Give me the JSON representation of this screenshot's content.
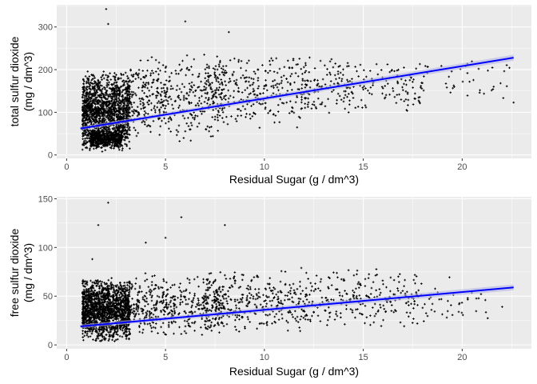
{
  "chart_data": [
    {
      "type": "scatter",
      "xlabel": "Residual Sugar (g / dm^3)",
      "ylabel": [
        "total sulfur dioxide",
        "(mg / dm^3)"
      ],
      "xlim": [
        -0.5,
        23.5
      ],
      "ylim": [
        -8,
        352
      ],
      "xticks": [
        0,
        5,
        10,
        15,
        20
      ],
      "yticks": [
        0,
        100,
        200,
        300
      ],
      "grid": true,
      "colors": {
        "points": "#000000",
        "fit_line": "#0000ff",
        "ribbon": "#b3b3e6",
        "panel": "#ebebeb",
        "gridline": "#ffffff"
      },
      "outliers": [
        [
          2.0,
          342
        ],
        [
          2.1,
          307
        ],
        [
          6.0,
          313
        ],
        [
          8.2,
          288
        ],
        [
          1.8,
          8
        ],
        [
          22.6,
          123
        ]
      ],
      "clusters": [
        {
          "x": [
            0.8,
            3.2
          ],
          "y": [
            5,
            200
          ],
          "n": 1500
        },
        {
          "x": [
            1.2,
            2.8
          ],
          "y": [
            15,
            60
          ],
          "n": 500
        },
        {
          "x": [
            3.0,
            8.0
          ],
          "y": [
            30,
            240
          ],
          "n": 450
        },
        {
          "x": [
            7.0,
            12.0
          ],
          "y": [
            60,
            240
          ],
          "n": 300
        },
        {
          "x": [
            12.0,
            18.0
          ],
          "y": [
            90,
            230
          ],
          "n": 230
        },
        {
          "x": [
            18.0,
            22.5
          ],
          "y": [
            120,
            235
          ],
          "n": 40
        }
      ],
      "fit": {
        "x": [
          0.7,
          22.6
        ],
        "y": [
          62,
          228
        ]
      }
    },
    {
      "type": "scatter",
      "xlabel": "Residual Sugar (g / dm^3)",
      "ylabel": [
        "free sulfur dioxide",
        "(mg / dm^3)"
      ],
      "xlim": [
        -0.5,
        23.5
      ],
      "ylim": [
        -4,
        152
      ],
      "xticks": [
        0,
        5,
        10,
        15,
        20
      ],
      "yticks": [
        0,
        50,
        100,
        150
      ],
      "grid": true,
      "colors": {
        "points": "#000000",
        "fit_line": "#0000ff",
        "ribbon": "#b3b3e6",
        "panel": "#ebebeb",
        "gridline": "#ffffff"
      },
      "outliers": [
        [
          2.1,
          146
        ],
        [
          5.8,
          131
        ],
        [
          1.6,
          123
        ],
        [
          8.0,
          123
        ],
        [
          4.0,
          105
        ],
        [
          5.0,
          110
        ],
        [
          1.3,
          88
        ]
      ],
      "clusters": [
        {
          "x": [
            0.8,
            3.2
          ],
          "y": [
            2,
            70
          ],
          "n": 1600
        },
        {
          "x": [
            3.0,
            8.0
          ],
          "y": [
            5,
            75
          ],
          "n": 450
        },
        {
          "x": [
            7.0,
            12.0
          ],
          "y": [
            10,
            80
          ],
          "n": 330
        },
        {
          "x": [
            12.0,
            18.0
          ],
          "y": [
            15,
            80
          ],
          "n": 250
        },
        {
          "x": [
            18.0,
            22.5
          ],
          "y": [
            20,
            70
          ],
          "n": 40
        }
      ],
      "fit": {
        "x": [
          0.7,
          22.6
        ],
        "y": [
          19,
          59
        ]
      }
    }
  ]
}
